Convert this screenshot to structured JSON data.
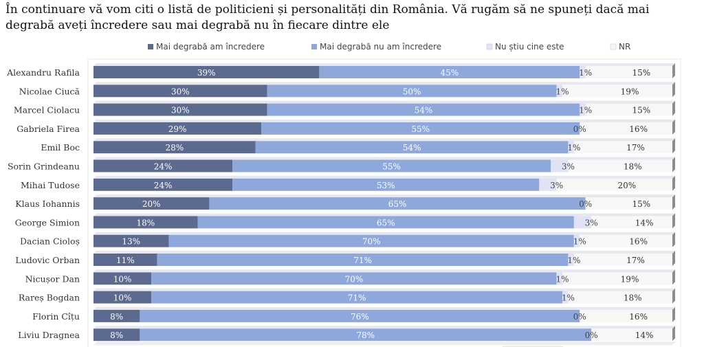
{
  "title_lines": [
    "În continuare vă vom citi o listă de politicieni și personalități din România. Vă rugăm să ne spuneți dacă mai",
    "degrabă aveți încredere sau mai degrabă nu în fiecare dintre ele"
  ],
  "colors": {
    "trust": "#5b6a8e",
    "distrust": "#8fa8dc",
    "unknown": "#dfe3f4",
    "nr": "#f7f7f7"
  },
  "chart_data": {
    "type": "bar",
    "orientation": "horizontal",
    "stacked": true,
    "title": "În continuare vă vom citi o listă de politicieni și personalități din România. Vă rugăm să ne spuneți dacă mai degrabă aveți încredere sau mai degrabă nu în fiecare dintre ele",
    "legend_position": "top",
    "xlim": [
      0,
      100
    ],
    "categories": [
      "Alexandru Rafila",
      "Nicolae Ciucă",
      "Marcel Ciolacu",
      "Gabriela Firea",
      "Emil Boc",
      "Sorin Grindeanu",
      "Mihai Tudose",
      "Klaus Iohannis",
      "George Simion",
      "Dacian Cioloș",
      "Ludovic Orban",
      "Nicușor Dan",
      "Rareș Bogdan",
      "Florin Cîțu",
      "Liviu Dragnea"
    ],
    "series": [
      {
        "name": "Mai degrabă am încredere",
        "values": [
          39,
          30,
          30,
          29,
          28,
          24,
          24,
          20,
          18,
          13,
          11,
          10,
          10,
          8,
          8
        ]
      },
      {
        "name": "Mai degrabă nu am încredere",
        "values": [
          45,
          50,
          54,
          55,
          54,
          55,
          53,
          65,
          65,
          70,
          71,
          70,
          71,
          76,
          78
        ]
      },
      {
        "name": "Nu știu cine este",
        "values": [
          1,
          1,
          1,
          0,
          1,
          3,
          3,
          0,
          3,
          1,
          1,
          1,
          1,
          0,
          0
        ]
      },
      {
        "name": "NR",
        "values": [
          15,
          19,
          15,
          16,
          17,
          18,
          20,
          15,
          14,
          16,
          17,
          19,
          18,
          16,
          14
        ]
      }
    ]
  }
}
